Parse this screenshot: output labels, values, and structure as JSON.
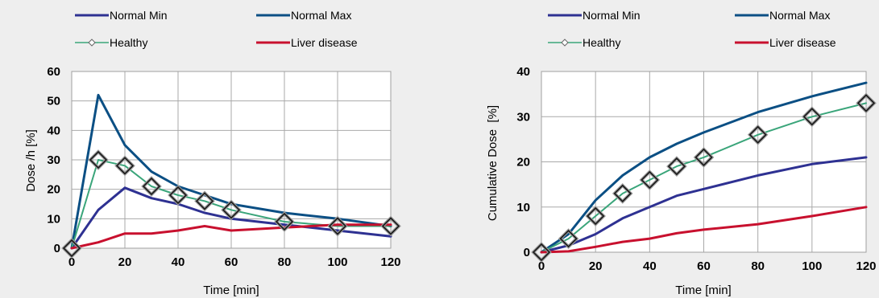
{
  "chart_data": [
    {
      "type": "line",
      "title": "",
      "xlabel": "Time [min]",
      "ylabel": "Dose /h [%]",
      "x_ticks": [
        "0",
        "20",
        "40",
        "60",
        "80",
        "100",
        "120"
      ],
      "y_ticks": [
        "0",
        "10",
        "20",
        "30",
        "40",
        "50",
        "60"
      ],
      "xlim": [
        0,
        120
      ],
      "ylim": [
        0,
        60
      ],
      "grid": true,
      "legend_position": "top",
      "series": [
        {
          "name": "Normal Min",
          "color": "#2e3192",
          "marker": "none",
          "x": [
            0,
            10,
            20,
            30,
            40,
            50,
            60,
            80,
            100,
            120
          ],
          "y": [
            0,
            13,
            20.5,
            17,
            15,
            12,
            10,
            8,
            6,
            4
          ]
        },
        {
          "name": "Normal Max",
          "color": "#0b4f84",
          "marker": "none",
          "x": [
            0,
            10,
            20,
            30,
            40,
            50,
            60,
            80,
            100,
            120
          ],
          "y": [
            0,
            52,
            35,
            26,
            21,
            18,
            15,
            12,
            10,
            7.5
          ]
        },
        {
          "name": "Healthy",
          "color": "#3aa57a",
          "marker": "diamond",
          "x": [
            0,
            10,
            20,
            30,
            40,
            50,
            60,
            80,
            100,
            120
          ],
          "y": [
            0,
            30,
            28,
            21,
            18,
            16,
            13,
            9,
            7.5,
            7.5
          ]
        },
        {
          "name": "Liver disease",
          "color": "#c8102e",
          "marker": "none",
          "x": [
            0,
            10,
            20,
            30,
            40,
            50,
            60,
            80,
            100,
            120
          ],
          "y": [
            0,
            2,
            5,
            5,
            6,
            7.5,
            6,
            7,
            8,
            8
          ]
        }
      ]
    },
    {
      "type": "line",
      "title": "",
      "xlabel": "Time [min]",
      "ylabel": "Cumulative Dose  [%]",
      "x_ticks": [
        "0",
        "20",
        "40",
        "60",
        "80",
        "100",
        "120"
      ],
      "y_ticks": [
        "0",
        "10",
        "20",
        "30",
        "40"
      ],
      "xlim": [
        0,
        120
      ],
      "ylim": [
        0,
        40
      ],
      "grid": true,
      "legend_position": "top",
      "series": [
        {
          "name": "Normal Min",
          "color": "#2e3192",
          "marker": "none",
          "x": [
            0,
            10,
            20,
            30,
            40,
            50,
            60,
            80,
            100,
            120
          ],
          "y": [
            0,
            1.5,
            4,
            7.5,
            10,
            12.5,
            14,
            17,
            19.5,
            21
          ]
        },
        {
          "name": "Normal Max",
          "color": "#0b4f84",
          "marker": "none",
          "x": [
            0,
            10,
            20,
            30,
            40,
            50,
            60,
            80,
            100,
            120
          ],
          "y": [
            0,
            4,
            11.5,
            17,
            21,
            24,
            26.5,
            31,
            34.5,
            37.5
          ]
        },
        {
          "name": "Healthy",
          "color": "#3aa57a",
          "marker": "diamond",
          "x": [
            0,
            10,
            20,
            30,
            40,
            50,
            60,
            80,
            100,
            120
          ],
          "y": [
            0,
            3,
            8,
            13,
            16,
            19,
            21,
            26,
            30,
            33
          ]
        },
        {
          "name": "Liver disease",
          "color": "#c8102e",
          "marker": "none",
          "x": [
            0,
            10,
            20,
            30,
            40,
            50,
            60,
            80,
            100,
            120
          ],
          "y": [
            0,
            0.2,
            1.2,
            2.3,
            3,
            4.2,
            5,
            6.2,
            8,
            10
          ]
        }
      ]
    }
  ]
}
